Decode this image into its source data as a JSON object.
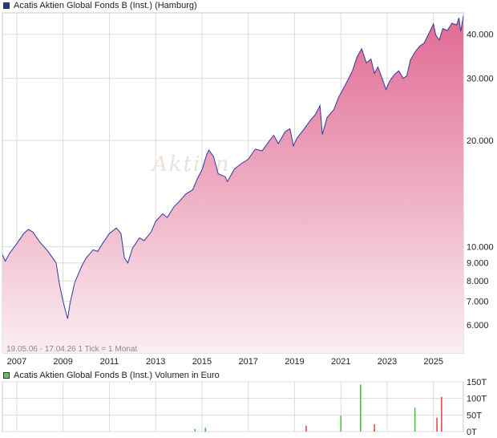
{
  "chart_data": [
    {
      "type": "area",
      "title": "Acatis Aktien Global Fonds B (Inst.) (Hamburg)",
      "series_color": "#2a3d9a",
      "fill_top_color": "#e06a93",
      "fill_bottom_color": "#fbeef3",
      "y_scale": "log",
      "ylim": [
        5000,
        46000
      ],
      "y_ticks": [
        6000,
        7000,
        8000,
        9000,
        10000,
        20000,
        30000,
        40000
      ],
      "y_tick_labels": [
        "6.000",
        "7.000",
        "8.000",
        "9.000",
        "10.000",
        "20.000",
        "30.000",
        "40.000"
      ],
      "x_range": [
        2006.38,
        2026.29
      ],
      "x_ticks": [
        2007,
        2009,
        2011,
        2013,
        2015,
        2017,
        2019,
        2021,
        2023,
        2025
      ],
      "x_tick_labels": [
        "2007",
        "2009",
        "2011",
        "2013",
        "2015",
        "2017",
        "2019",
        "2021",
        "2023",
        "2025"
      ],
      "range_note": "19.05.06 - 17.04.26   1 Tick = 1 Monat",
      "watermark": "Aktien",
      "points": [
        [
          2006.38,
          9500
        ],
        [
          2006.5,
          9100
        ],
        [
          2006.7,
          9600
        ],
        [
          2007.0,
          10200
        ],
        [
          2007.3,
          10900
        ],
        [
          2007.5,
          11200
        ],
        [
          2007.7,
          11000
        ],
        [
          2008.0,
          10300
        ],
        [
          2008.3,
          9800
        ],
        [
          2008.5,
          9400
        ],
        [
          2008.7,
          9000
        ],
        [
          2008.85,
          7800
        ],
        [
          2009.0,
          7000
        ],
        [
          2009.1,
          6600
        ],
        [
          2009.2,
          6250
        ],
        [
          2009.3,
          6900
        ],
        [
          2009.5,
          7900
        ],
        [
          2009.8,
          8800
        ],
        [
          2010.0,
          9300
        ],
        [
          2010.3,
          9800
        ],
        [
          2010.5,
          9700
        ],
        [
          2010.7,
          10200
        ],
        [
          2011.0,
          10900
        ],
        [
          2011.3,
          11300
        ],
        [
          2011.5,
          10900
        ],
        [
          2011.65,
          9300
        ],
        [
          2011.8,
          9000
        ],
        [
          2012.0,
          9900
        ],
        [
          2012.3,
          10600
        ],
        [
          2012.5,
          10400
        ],
        [
          2012.8,
          11000
        ],
        [
          2013.0,
          11800
        ],
        [
          2013.3,
          12400
        ],
        [
          2013.5,
          12100
        ],
        [
          2013.8,
          13000
        ],
        [
          2014.0,
          13400
        ],
        [
          2014.3,
          14100
        ],
        [
          2014.6,
          14500
        ],
        [
          2014.8,
          15600
        ],
        [
          2015.0,
          16500
        ],
        [
          2015.2,
          18200
        ],
        [
          2015.3,
          18800
        ],
        [
          2015.5,
          18000
        ],
        [
          2015.7,
          16100
        ],
        [
          2016.0,
          15800
        ],
        [
          2016.1,
          15300
        ],
        [
          2016.4,
          16600
        ],
        [
          2016.7,
          17200
        ],
        [
          2017.0,
          17700
        ],
        [
          2017.3,
          18900
        ],
        [
          2017.6,
          18700
        ],
        [
          2017.9,
          19900
        ],
        [
          2018.1,
          20700
        ],
        [
          2018.3,
          19600
        ],
        [
          2018.6,
          21200
        ],
        [
          2018.8,
          21600
        ],
        [
          2018.95,
          19300
        ],
        [
          2019.1,
          20300
        ],
        [
          2019.4,
          21500
        ],
        [
          2019.7,
          22900
        ],
        [
          2019.9,
          23700
        ],
        [
          2020.1,
          25100
        ],
        [
          2020.2,
          20800
        ],
        [
          2020.4,
          23200
        ],
        [
          2020.7,
          24500
        ],
        [
          2020.9,
          26500
        ],
        [
          2021.2,
          28800
        ],
        [
          2021.5,
          31500
        ],
        [
          2021.7,
          34500
        ],
        [
          2021.9,
          36400
        ],
        [
          2022.1,
          33200
        ],
        [
          2022.3,
          34000
        ],
        [
          2022.45,
          31000
        ],
        [
          2022.6,
          32300
        ],
        [
          2022.8,
          29800
        ],
        [
          2022.95,
          27900
        ],
        [
          2023.1,
          29400
        ],
        [
          2023.3,
          30700
        ],
        [
          2023.5,
          31500
        ],
        [
          2023.7,
          30000
        ],
        [
          2023.85,
          30500
        ],
        [
          2024.0,
          33800
        ],
        [
          2024.2,
          35600
        ],
        [
          2024.4,
          37000
        ],
        [
          2024.6,
          37800
        ],
        [
          2024.8,
          40200
        ],
        [
          2025.0,
          42800
        ],
        [
          2025.1,
          39800
        ],
        [
          2025.25,
          38500
        ],
        [
          2025.4,
          41500
        ],
        [
          2025.6,
          41000
        ],
        [
          2025.8,
          43000
        ],
        [
          2026.0,
          42500
        ],
        [
          2026.1,
          44500
        ],
        [
          2026.18,
          40800
        ],
        [
          2026.29,
          45000
        ]
      ]
    },
    {
      "type": "bar",
      "title": "Acatis Aktien Global Fonds B (Inst.) Volumen in Euro",
      "ylim": [
        0,
        150
      ],
      "y_ticks": [
        0,
        50,
        100,
        150
      ],
      "y_tick_labels": [
        "0T",
        "50T",
        "100T",
        "150T"
      ],
      "bars": [
        {
          "x": 2014.7,
          "value": 8,
          "color": "#40c040"
        },
        {
          "x": 2015.15,
          "value": 12,
          "color": "#40c040"
        },
        {
          "x": 2019.5,
          "value": 18,
          "color": "#e04040"
        },
        {
          "x": 2021.0,
          "value": 48,
          "color": "#40c040"
        },
        {
          "x": 2021.85,
          "value": 142,
          "color": "#40c040"
        },
        {
          "x": 2022.45,
          "value": 22,
          "color": "#e04040"
        },
        {
          "x": 2024.2,
          "value": 72,
          "color": "#40c040"
        },
        {
          "x": 2025.15,
          "value": 42,
          "color": "#e04040"
        },
        {
          "x": 2025.35,
          "value": 105,
          "color": "#e04040"
        }
      ]
    }
  ]
}
